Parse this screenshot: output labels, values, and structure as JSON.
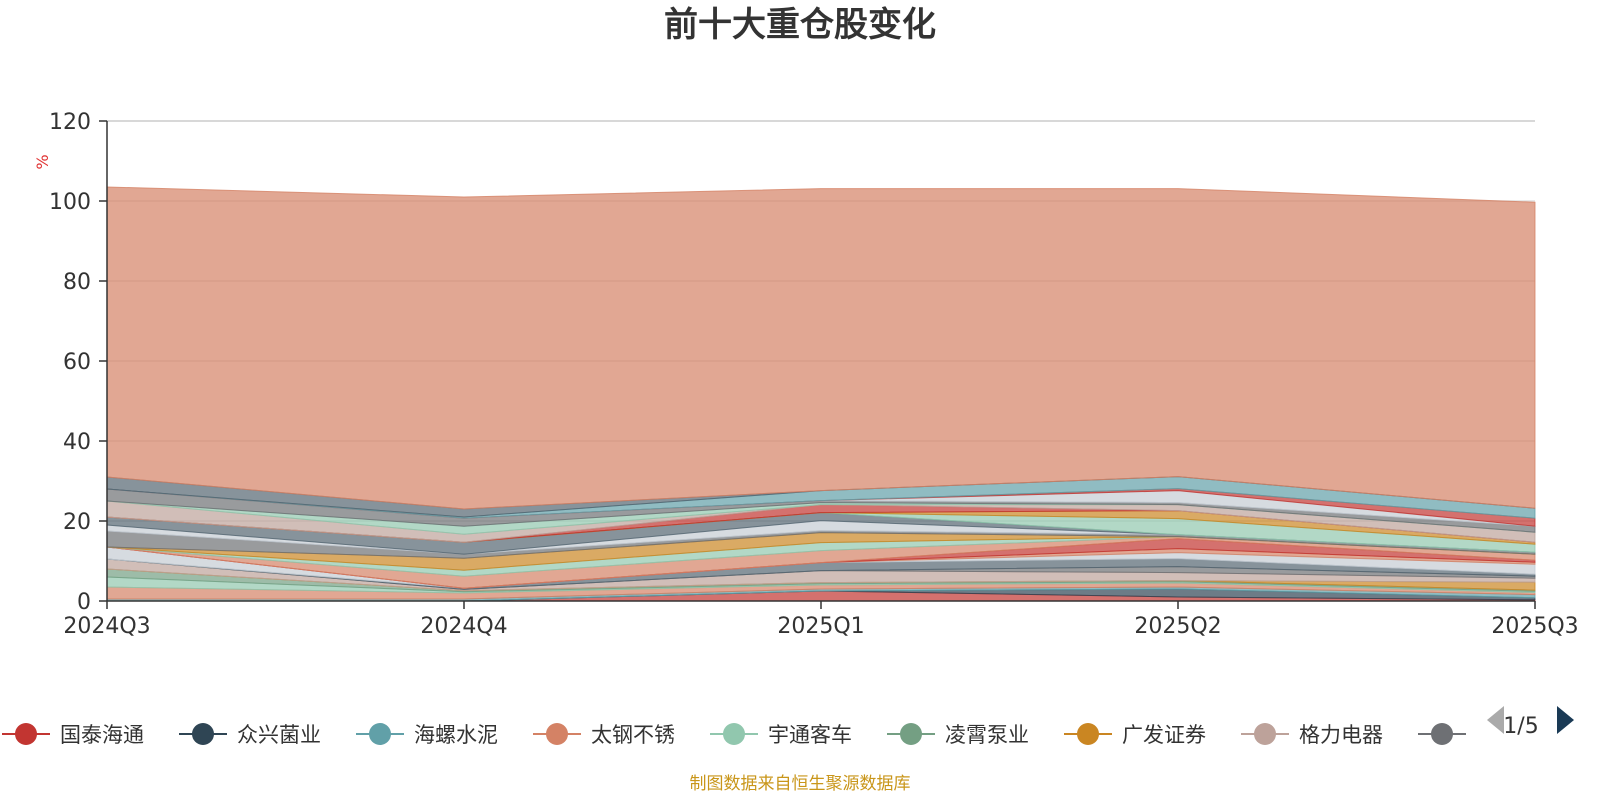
{
  "chart_data": {
    "type": "area",
    "title": "前十大重仓股变化",
    "ylabel": "%",
    "categories": [
      "2024Q3",
      "2024Q4",
      "2025Q1",
      "2025Q2",
      "2025Q3"
    ],
    "ylim": [
      0,
      120
    ],
    "yticks": [
      0,
      20,
      40,
      60,
      80,
      100,
      120
    ],
    "grid": true,
    "legend_position": "bottom",
    "legend_page": "1/5",
    "source": "制图数据来自恒生聚源数据库",
    "series": [
      {
        "name": "国泰海通",
        "color": "#c23531",
        "values": [
          0.0,
          0.0,
          2.5,
          1.0,
          0.3
        ],
        "visible_in_legend": true
      },
      {
        "name": "众兴菌业",
        "color": "#2f4554",
        "values": [
          0.0,
          0.0,
          0.0,
          2.0,
          0.5
        ],
        "visible_in_legend": true
      },
      {
        "name": "海螺水泥",
        "color": "#61a0a8",
        "values": [
          0.5,
          0.5,
          0.5,
          0.5,
          0.8
        ],
        "visible_in_legend": true
      },
      {
        "name": "太钢不锈",
        "color": "#d48265",
        "values": [
          3.0,
          1.5,
          1.0,
          1.0,
          0.5
        ],
        "visible_in_legend": true
      },
      {
        "name": "宇通客车",
        "color": "#91c7ae",
        "values": [
          2.5,
          0.3,
          0.3,
          0.3,
          0.3
        ],
        "visible_in_legend": true
      },
      {
        "name": "凌霄泵业",
        "color": "#749f83",
        "values": [
          2.0,
          0.3,
          0.3,
          0.3,
          0.3
        ],
        "visible_in_legend": true
      },
      {
        "name": "广发证券",
        "color": "#ca8622",
        "values": [
          0.0,
          0.0,
          0.0,
          0.0,
          2.0
        ],
        "visible_in_legend": true
      },
      {
        "name": "格力电器",
        "color": "#bda29a",
        "values": [
          2.5,
          0.3,
          3.0,
          2.0,
          1.0
        ],
        "visible_in_legend": true
      },
      {
        "name": "",
        "color": "#6e7074",
        "values": [
          0.0,
          0.0,
          0.0,
          1.5,
          0.5
        ],
        "visible_in_legend": true
      },
      {
        "name": "",
        "color": "#546570",
        "values": [
          0.0,
          0.3,
          2.0,
          2.0,
          0.5
        ],
        "visible_in_legend": false
      },
      {
        "name": "",
        "color": "#c4ccd3",
        "values": [
          3.0,
          0.0,
          0.0,
          1.5,
          2.5
        ],
        "visible_in_legend": false
      },
      {
        "name": "",
        "color": "#d48265",
        "values": [
          0.0,
          0.0,
          0.0,
          1.0,
          0.5
        ],
        "visible_in_legend": false
      },
      {
        "name": "",
        "color": "#c23531",
        "values": [
          0.0,
          0.0,
          0.0,
          2.5,
          0.5
        ],
        "visible_in_legend": false
      },
      {
        "name": "",
        "color": "#d48265",
        "values": [
          0.0,
          3.0,
          3.0,
          0.5,
          1.5
        ],
        "visible_in_legend": false
      },
      {
        "name": "",
        "color": "#91c7ae",
        "values": [
          0.0,
          1.5,
          2.0,
          0.0,
          0.0
        ],
        "visible_in_legend": false
      },
      {
        "name": "",
        "color": "#ca8622",
        "values": [
          0.0,
          3.0,
          2.5,
          0.0,
          0.0
        ],
        "visible_in_legend": false
      },
      {
        "name": "",
        "color": "#6e7074",
        "values": [
          4.0,
          1.0,
          0.5,
          0.5,
          0.5
        ],
        "visible_in_legend": false
      },
      {
        "name": "",
        "color": "#c4ccd3",
        "values": [
          1.5,
          0.0,
          2.5,
          0.0,
          0.0
        ],
        "visible_in_legend": false
      },
      {
        "name": "",
        "color": "#546570",
        "values": [
          2.0,
          3.0,
          2.0,
          0.0,
          0.0
        ],
        "visible_in_legend": false
      },
      {
        "name": "",
        "color": "#91c7ae",
        "values": [
          0.0,
          0.0,
          0.0,
          4.0,
          2.0
        ],
        "visible_in_legend": false
      },
      {
        "name": "",
        "color": "#ca8622",
        "values": [
          0.0,
          0.0,
          0.0,
          2.0,
          0.5
        ],
        "visible_in_legend": false
      },
      {
        "name": "",
        "color": "#c23531",
        "values": [
          0.0,
          0.0,
          2.0,
          0.0,
          0.0
        ],
        "visible_in_legend": false
      },
      {
        "name": "",
        "color": "#bda29a",
        "values": [
          4.0,
          2.0,
          0.0,
          1.5,
          2.5
        ],
        "visible_in_legend": false
      },
      {
        "name": "",
        "color": "#91c7ae",
        "values": [
          0.0,
          2.0,
          0.5,
          0.0,
          0.0
        ],
        "visible_in_legend": false
      },
      {
        "name": "",
        "color": "#6e7074",
        "values": [
          3.0,
          2.0,
          0.5,
          0.5,
          1.5
        ],
        "visible_in_legend": false
      },
      {
        "name": "",
        "color": "#c4ccd3",
        "values": [
          0.0,
          0.0,
          0.0,
          3.0,
          0.0
        ],
        "visible_in_legend": false
      },
      {
        "name": "",
        "color": "#c23531",
        "values": [
          0.0,
          0.0,
          0.0,
          0.5,
          2.0
        ],
        "visible_in_legend": false
      },
      {
        "name": "",
        "color": "#61a0a8",
        "values": [
          0.0,
          0.3,
          2.5,
          3.0,
          2.5
        ],
        "visible_in_legend": false
      },
      {
        "name": "",
        "color": "#546570",
        "values": [
          3.0,
          2.0,
          0.0,
          0.0,
          0.0
        ],
        "visible_in_legend": false
      },
      {
        "name": "",
        "color": "#d48265",
        "values": [
          72.5,
          78.0,
          75.5,
          72.0,
          76.5
        ],
        "visible_in_legend": false
      }
    ]
  }
}
